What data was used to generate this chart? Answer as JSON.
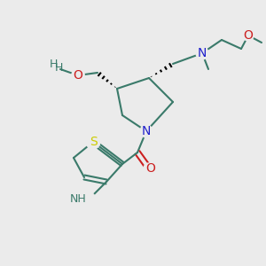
{
  "bg_color": "#ebebeb",
  "bond_color": "#3a7a6a",
  "bond_lw": 1.5,
  "atom_colors": {
    "N": "#2020cc",
    "O": "#cc2020",
    "S": "#cccc00",
    "NH": "#3a7a6a",
    "C": "#000000",
    "H": "#3a7a6a"
  },
  "font_size": 9,
  "stereo_lw": 1.2
}
